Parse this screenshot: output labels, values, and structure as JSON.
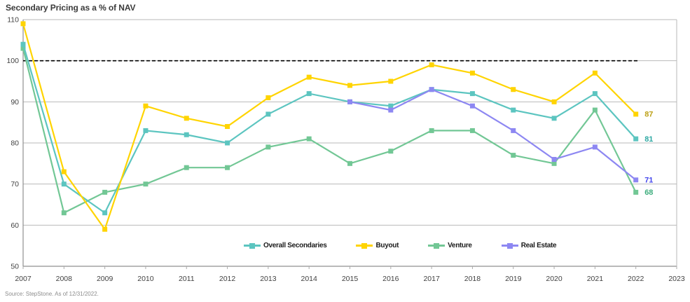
{
  "chart": {
    "title": "Secondary Pricing as a % of NAV",
    "source": "Source: StepStone. As of 12/31/2022."
  },
  "chart_data": {
    "type": "line",
    "title": "Secondary Pricing as a % of NAV",
    "xlabel": "",
    "ylabel": "",
    "x": [
      2007,
      2008,
      2009,
      2010,
      2011,
      2012,
      2013,
      2014,
      2015,
      2016,
      2017,
      2018,
      2019,
      2020,
      2021,
      2022
    ],
    "x_ticks": [
      "2007",
      "2008",
      "2009",
      "2010",
      "2011",
      "2012",
      "2013",
      "2014",
      "2015",
      "2016",
      "2017",
      "2018",
      "2019",
      "2020",
      "2021",
      "2022",
      "2023"
    ],
    "ylim": [
      50,
      110
    ],
    "y_ticks": [
      110,
      100,
      90,
      80,
      70,
      60,
      50
    ],
    "grid": true,
    "legend_position": "bottom-center-inside",
    "reference_line": {
      "y": 100,
      "style": "dashed",
      "color": "#000000"
    },
    "marker": "square",
    "series": [
      {
        "name": "Overall Secondaries",
        "color": "#5cc5c0",
        "label_color": "#2fa9a4",
        "end_label": "81",
        "values": [
          104,
          70,
          63,
          83,
          82,
          80,
          87,
          92,
          90,
          89,
          93,
          92,
          88,
          86,
          92,
          81
        ]
      },
      {
        "name": "Buyout",
        "color": "#ffd400",
        "label_color": "#bda118",
        "end_label": "87",
        "values": [
          109,
          73,
          59,
          89,
          86,
          84,
          91,
          96,
          94,
          95,
          99,
          97,
          93,
          90,
          97,
          87
        ]
      },
      {
        "name": "Venture",
        "color": "#72c795",
        "label_color": "#3fae7e",
        "end_label": "68",
        "values": [
          103,
          63,
          68,
          70,
          74,
          74,
          79,
          81,
          75,
          78,
          83,
          83,
          77,
          75,
          88,
          68
        ]
      },
      {
        "name": "Real Estate",
        "color": "#8d87f2",
        "label_color": "#4547ec",
        "end_label": "71",
        "values": [
          null,
          null,
          null,
          null,
          null,
          null,
          null,
          null,
          90,
          88,
          93,
          89,
          83,
          76,
          79,
          71
        ]
      }
    ]
  }
}
